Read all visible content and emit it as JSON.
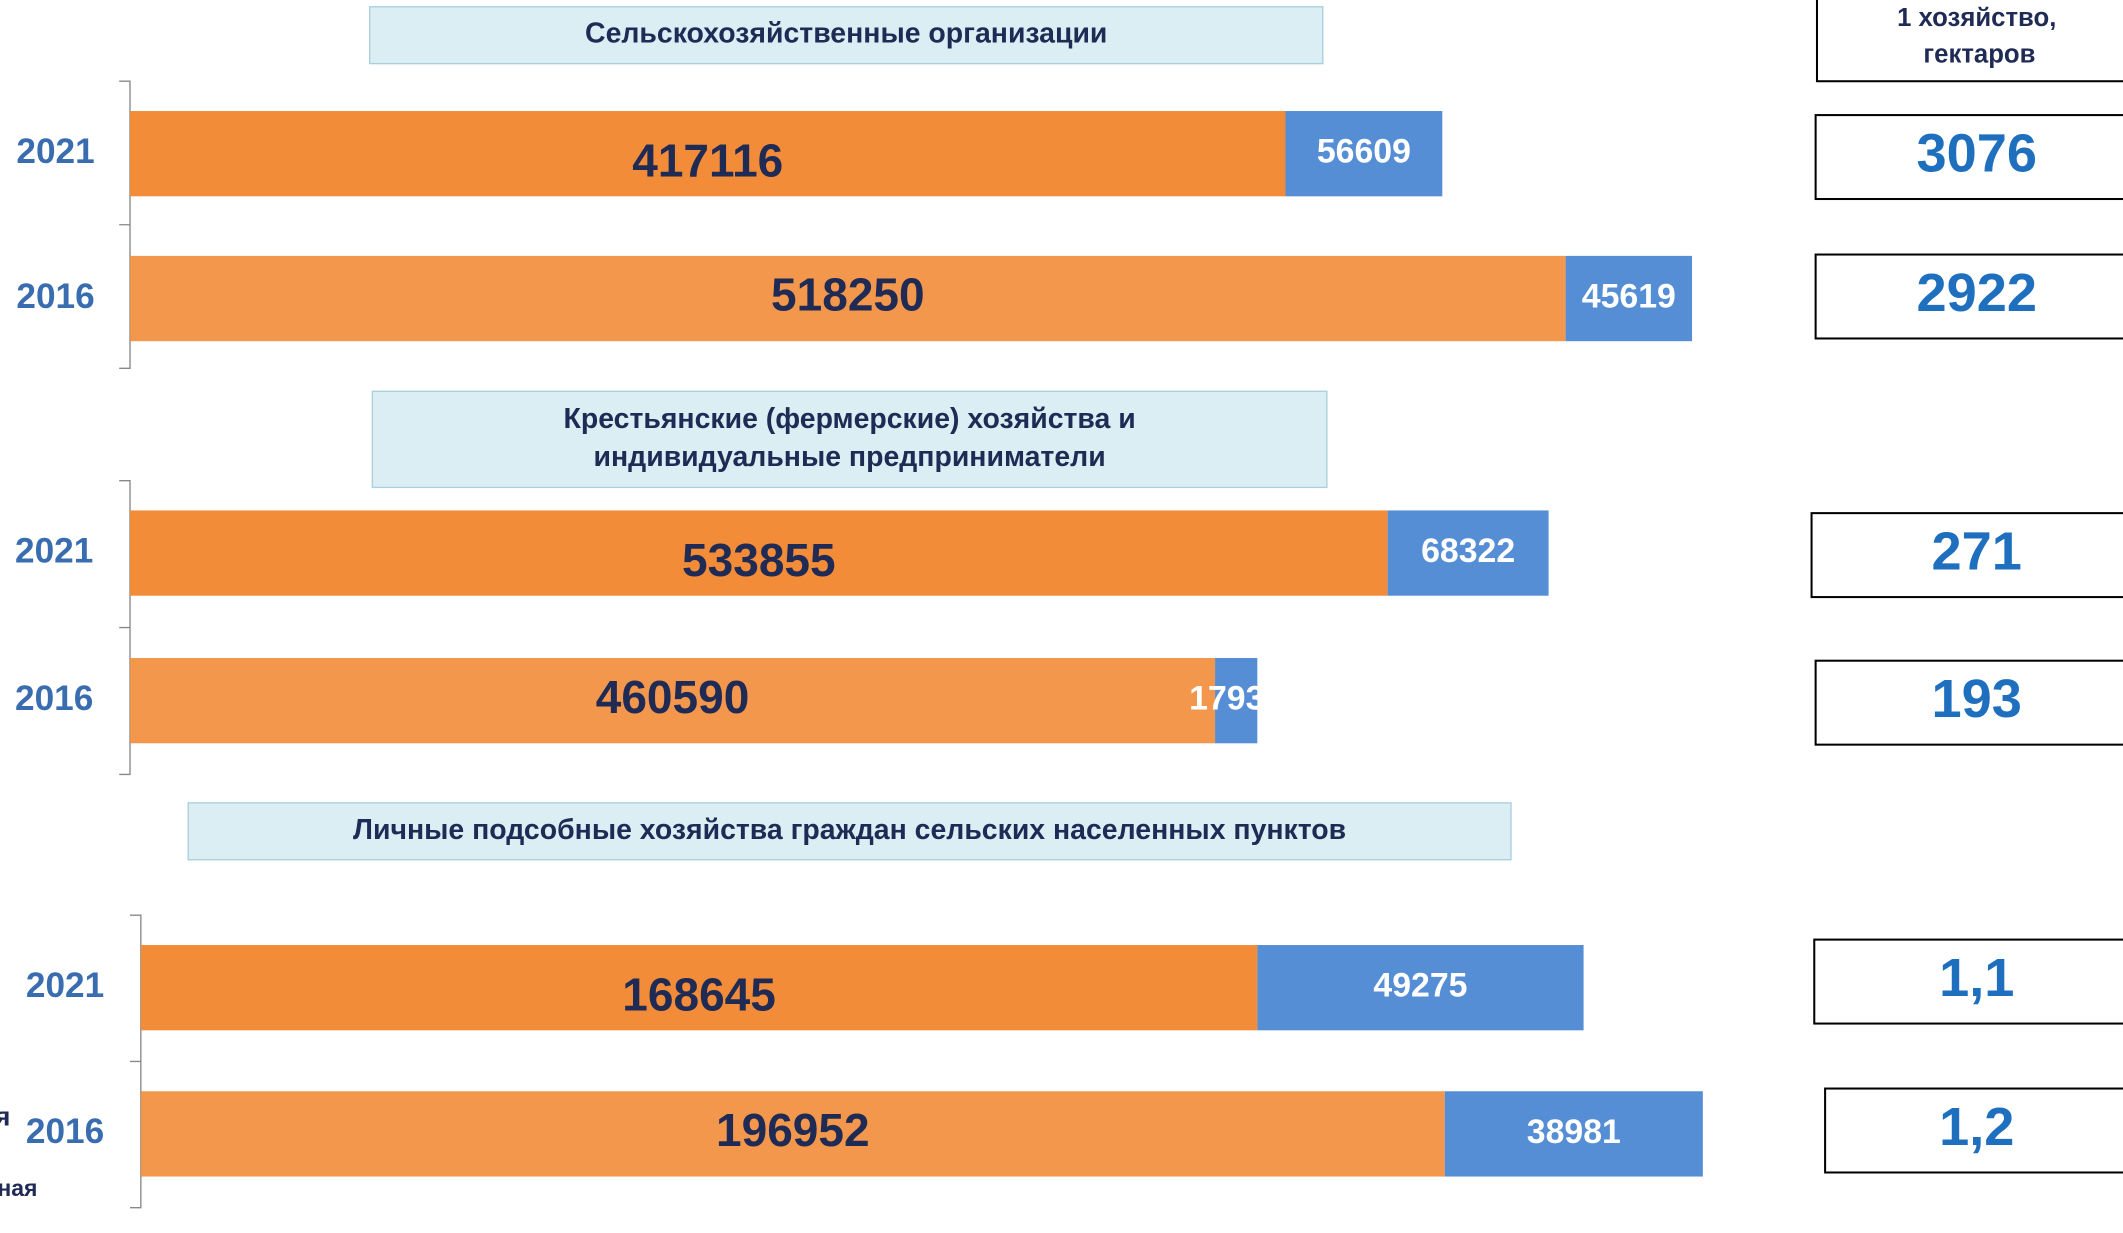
{
  "chart_data": [
    {
      "type": "bar",
      "title": [
        "Сельскохозяйственные организации"
      ],
      "categories": [
        "2021",
        "2016"
      ],
      "series": [
        {
          "color": "#f28c38",
          "values": [
            417116,
            518250
          ]
        },
        {
          "color": "#558ed5",
          "values": [
            56609,
            45619
          ]
        }
      ],
      "xlim": [
        0,
        564500
      ],
      "per_farm_values": [
        3076,
        2922
      ]
    },
    {
      "type": "bar",
      "title": [
        "Крестьянские (фермерские) хозяйства и",
        "индивидуальные предприниматели"
      ],
      "categories": [
        "2021",
        "2016"
      ],
      "series": [
        {
          "color": "#f28c38",
          "values": [
            533855,
            460590
          ]
        },
        {
          "color": "#558ed5",
          "values": [
            68322,
            17939
          ]
        }
      ],
      "xlim": [
        0,
        663800
      ],
      "per_farm_values": [
        271,
        193
      ]
    },
    {
      "type": "bar",
      "title": [
        "Личные подсобные хозяйства граждан сельских населенных пунктов"
      ],
      "categories": [
        "2021",
        "2016"
      ],
      "series": [
        {
          "color": "#f28c38",
          "values": [
            168645,
            196952
          ]
        },
        {
          "color": "#558ed5",
          "values": [
            49275,
            38981
          ]
        }
      ],
      "xlim": [
        0,
        236200
      ],
      "per_farm_values": [
        1.1,
        1.2
      ],
      "per_farm_value_labels": [
        "1,1",
        "1,2"
      ]
    }
  ],
  "per_farm_header": [
    "1 хозяйство,",
    "гектаров"
  ],
  "fragments": [
    "я",
    "ная"
  ]
}
